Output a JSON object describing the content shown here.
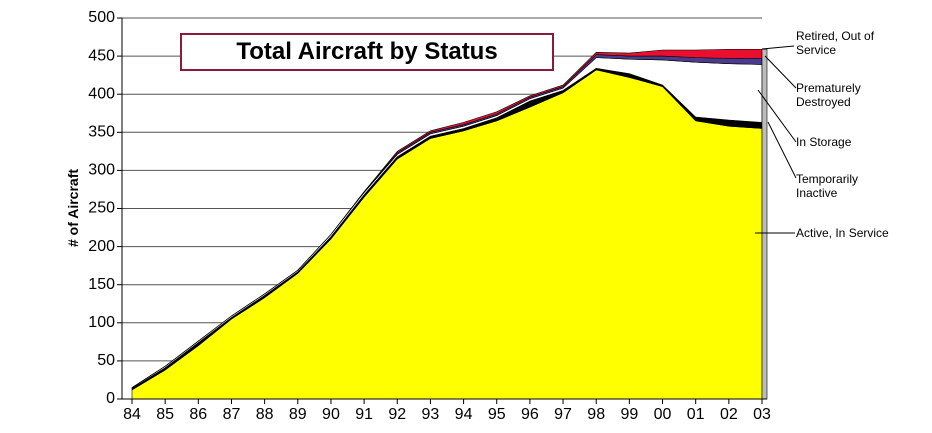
{
  "chart_data": {
    "type": "stacked-area",
    "title": "Total Aircraft by Status",
    "ylabel": "# of Aircraft",
    "categories": [
      "84",
      "85",
      "86",
      "87",
      "88",
      "89",
      "90",
      "91",
      "92",
      "93",
      "94",
      "95",
      "96",
      "97",
      "98",
      "99",
      "00",
      "01",
      "02",
      "03"
    ],
    "series": [
      {
        "name": "Active, In Service",
        "color": "#ffff00",
        "values": [
          12,
          38,
          70,
          105,
          133,
          165,
          210,
          265,
          315,
          342,
          352,
          365,
          383,
          402,
          432,
          422,
          410,
          365,
          358,
          355
        ]
      },
      {
        "name": "Temporarily Inactive",
        "color": "#000000",
        "values": [
          2,
          3,
          4,
          2,
          3,
          2,
          3,
          3,
          3,
          3,
          3,
          4,
          8,
          3,
          2,
          5,
          2,
          5,
          8,
          8
        ]
      },
      {
        "name": "In Storage",
        "color": "#ffffff",
        "values": [
          1,
          2,
          2,
          2,
          2,
          2,
          3,
          3,
          3,
          3,
          3,
          3,
          3,
          3,
          14,
          19,
          33,
          72,
          74,
          76
        ]
      },
      {
        "name": "Premature­ly Destroyed",
        "color": "#4b3b8f",
        "values": [
          0,
          0,
          0,
          0,
          0,
          0,
          0,
          1,
          2,
          2,
          2,
          2,
          2,
          2,
          4,
          4,
          5,
          6,
          7,
          8
        ]
      },
      {
        "name": "Retired, Out of Service",
        "color": "#e8102e",
        "values": [
          0,
          0,
          0,
          0,
          0,
          0,
          0,
          0,
          2,
          2,
          3,
          3,
          2,
          2,
          3,
          4,
          8,
          10,
          12,
          12
        ]
      }
    ],
    "ylim": [
      0,
      500
    ],
    "yticks": [
      0,
      50,
      100,
      150,
      200,
      250,
      300,
      350,
      400,
      450,
      500
    ],
    "grid": true
  }
}
